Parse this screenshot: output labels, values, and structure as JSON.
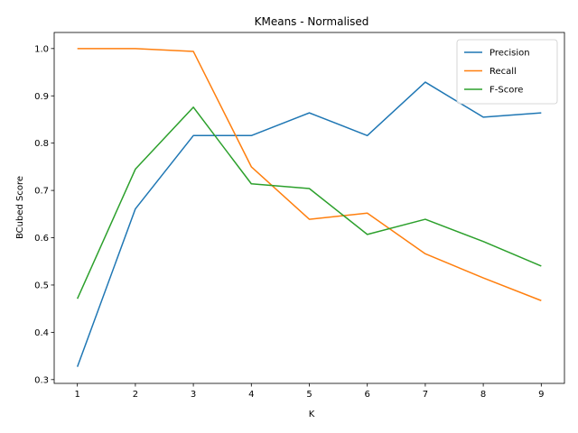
{
  "chart_data": {
    "type": "line",
    "title": "KMeans - Normalised",
    "xlabel": "K",
    "ylabel": "BCubed Score",
    "x": [
      1,
      2,
      3,
      4,
      5,
      6,
      7,
      8,
      9
    ],
    "x_ticks": [
      "1",
      "2",
      "3",
      "4",
      "5",
      "6",
      "7",
      "8",
      "9"
    ],
    "y_ticks": [
      "0.3",
      "0.4",
      "0.5",
      "0.6",
      "0.7",
      "0.8",
      "0.9",
      "1.0"
    ],
    "xlim": [
      0.6,
      9.4
    ],
    "ylim": [
      0.292,
      1.034
    ],
    "grid": false,
    "legend_position": "upper right",
    "series": [
      {
        "name": "Precision",
        "color": "#1f77b4",
        "values": [
          0.327,
          0.661,
          0.816,
          0.816,
          0.864,
          0.816,
          0.929,
          0.855,
          0.864
        ]
      },
      {
        "name": "Recall",
        "color": "#ff7f0e",
        "values": [
          1.0,
          1.0,
          0.994,
          0.75,
          0.639,
          0.652,
          0.566,
          0.515,
          0.467
        ]
      },
      {
        "name": "F-Score",
        "color": "#2ca02c",
        "values": [
          0.471,
          0.745,
          0.876,
          0.714,
          0.704,
          0.607,
          0.639,
          0.592,
          0.54
        ]
      }
    ]
  }
}
